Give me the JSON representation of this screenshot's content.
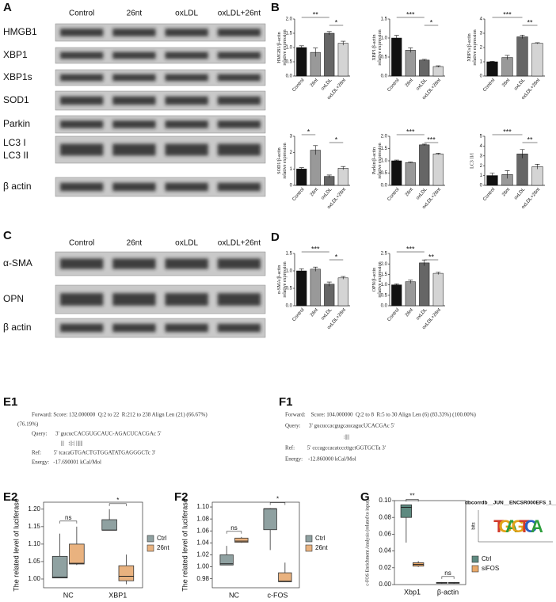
{
  "panel_labels": [
    "A",
    "B",
    "C",
    "D",
    "E1",
    "F1",
    "E2",
    "F2",
    "G"
  ],
  "blot_a": {
    "lanes": [
      "Control",
      "26nt",
      "oxLDL",
      "oxLDL+26nt"
    ],
    "rows": [
      "HMGB1",
      "XBP1",
      "XBP1s",
      "SOD1",
      "Parkin",
      "LC3 I",
      "LC3 II",
      "β actin"
    ]
  },
  "blot_c": {
    "lanes": [
      "Control",
      "26nt",
      "oxLDL",
      "oxLDL+26nt"
    ],
    "rows": [
      "α-SMA",
      "OPN",
      "β actin"
    ]
  },
  "alignment_e1": [
    "Forward: Score: 132.000000  Q:2 to 22  R:212 to 238 Align Len (21) (66.67%)",
    "(76.19%)",
    "Query:      3' gucucCACGUGCAUC-AGACUCACGAc 5'",
    "                     |||   :||:| ||||||",
    "Ref:         5' tcacaGTGACTGTGGATATGAGGGCTc 3'",
    "Energy:   -17.690001 kCal/Mol"
  ],
  "alignment_f1": [
    "Forward:    Score: 104.000000  Q:2 to 8  R:5 to 30 Align Len (6) (83.33%) (100.00%)",
    "Query:      3' gucuccacgugcaucagucUCACGAc 5'",
    "                                          :||||",
    "Ref:         5' cccagccacatcccttgctGGTGCTa 3'",
    "Energy:    -12.860000 kCal/Mol"
  ],
  "chart_data": [
    {
      "type": "bar",
      "ylabel": [
        "HMGB1/β-actin",
        "relative expression"
      ],
      "categories": [
        "Control",
        "26nt",
        "oxLDL",
        "oxLDL+26nt"
      ],
      "colors": [
        "#111111",
        "#999999",
        "#666666",
        "#d4d4d4"
      ],
      "values": [
        1.0,
        0.83,
        1.5,
        1.15
      ],
      "errors": [
        0.06,
        0.15,
        0.06,
        0.07
      ],
      "ylim": [
        0,
        2
      ],
      "yticks": [
        {
          "value": 0,
          "label": "0.0"
        },
        0.5,
        {
          "value": 1,
          "label": "1.0"
        },
        1.5,
        {
          "value": 2,
          "label": "2.0"
        }
      ],
      "significance": [
        {
          "label": "**",
          "between": [
            0,
            2
          ]
        },
        {
          "label": "*",
          "between": [
            2,
            3
          ]
        }
      ]
    },
    {
      "type": "bar",
      "ylabel": [
        "XBP1/β-actin",
        "relative expression"
      ],
      "categories": [
        "Control",
        "26nt",
        "oxLDL",
        "oxLDL+26nt"
      ],
      "colors": [
        "#111111",
        "#999999",
        "#666666",
        "#d4d4d4"
      ],
      "values": [
        1.0,
        0.68,
        0.42,
        0.25
      ],
      "errors": [
        0.07,
        0.06,
        0.02,
        0.02
      ],
      "ylim": [
        0,
        1.5
      ],
      "yticks": [
        {
          "value": 0,
          "label": "0.0"
        },
        0.5,
        {
          "value": 1,
          "label": "1.0"
        },
        1.5
      ],
      "significance": [
        {
          "label": "***",
          "between": [
            0,
            2
          ]
        },
        {
          "label": "*",
          "between": [
            2,
            3
          ]
        }
      ]
    },
    {
      "type": "bar",
      "ylabel": [
        "XBP1s/β-actin",
        "relative expression"
      ],
      "categories": [
        "Control",
        "26nt",
        "oxLDL",
        "oxLDL+26nt"
      ],
      "colors": [
        "#111111",
        "#999999",
        "#666666",
        "#d4d4d4"
      ],
      "values": [
        1.0,
        1.3,
        2.75,
        2.3
      ],
      "errors": [
        0.03,
        0.15,
        0.12,
        0.04
      ],
      "ylim": [
        0,
        4
      ],
      "yticks": [
        0,
        1,
        2,
        3,
        4
      ],
      "significance": [
        {
          "label": "***",
          "between": [
            0,
            2
          ]
        },
        {
          "label": "**",
          "between": [
            2,
            3
          ]
        }
      ]
    },
    {
      "type": "bar",
      "ylabel": [
        "SOD1/β-actin",
        "relative expression"
      ],
      "categories": [
        "Control",
        "26nt",
        "oxLDL",
        "oxLDL+26nt"
      ],
      "colors": [
        "#111111",
        "#999999",
        "#666666",
        "#d4d4d4"
      ],
      "values": [
        1.0,
        2.15,
        0.55,
        1.05
      ],
      "errors": [
        0.08,
        0.28,
        0.08,
        0.1
      ],
      "ylim": [
        0,
        3
      ],
      "yticks": [
        0,
        1,
        2,
        3
      ],
      "significance": [
        {
          "label": "*",
          "between": [
            0,
            1
          ]
        },
        {
          "label": "*",
          "between": [
            2,
            3
          ]
        }
      ]
    },
    {
      "type": "bar",
      "ylabel": [
        "Parkin/β-actin",
        "relative expression"
      ],
      "categories": [
        "Control",
        "26nt",
        "oxLDL",
        "oxLDL+26nt"
      ],
      "colors": [
        "#111111",
        "#999999",
        "#666666",
        "#d4d4d4"
      ],
      "values": [
        1.0,
        0.93,
        1.65,
        1.28
      ],
      "errors": [
        0.03,
        0.02,
        0.03,
        0.03
      ],
      "ylim": [
        0,
        2
      ],
      "yticks": [
        {
          "value": 0,
          "label": "0.0"
        },
        0.5,
        {
          "value": 1,
          "label": "1.0"
        },
        1.5,
        {
          "value": 2,
          "label": "2.0"
        }
      ],
      "significance": [
        {
          "label": "***",
          "between": [
            0,
            2
          ]
        },
        {
          "label": "***",
          "between": [
            2,
            3
          ]
        }
      ]
    },
    {
      "type": "bar",
      "ylabel": [
        "LC3 II/I"
      ],
      "categories": [
        "Control",
        "26nt",
        "oxLDL",
        "oxLDL+26nt"
      ],
      "colors": [
        "#111111",
        "#999999",
        "#666666",
        "#d4d4d4"
      ],
      "values": [
        1.0,
        1.1,
        3.2,
        1.9
      ],
      "errors": [
        0.25,
        0.4,
        0.45,
        0.25
      ],
      "ylim": [
        0,
        5
      ],
      "yticks": [
        0,
        1,
        2,
        3,
        4,
        5
      ],
      "significance": [
        {
          "label": "***",
          "between": [
            0,
            2
          ]
        },
        {
          "label": "**",
          "between": [
            2,
            3
          ]
        }
      ]
    },
    {
      "type": "bar",
      "ylabel": [
        "α-SMA/β-actin",
        "relative expression"
      ],
      "categories": [
        "Control",
        "26nt",
        "oxLDL",
        "oxLDL+26nt"
      ],
      "colors": [
        "#111111",
        "#999999",
        "#666666",
        "#d4d4d4"
      ],
      "values": [
        1.0,
        1.05,
        0.62,
        0.8
      ],
      "errors": [
        0.06,
        0.06,
        0.06,
        0.04
      ],
      "ylim": [
        0,
        1.5
      ],
      "yticks": [
        {
          "value": 0,
          "label": "0.0"
        },
        0.5,
        {
          "value": 1,
          "label": "1.0"
        },
        1.5
      ],
      "significance": [
        {
          "label": "***",
          "between": [
            0,
            2
          ]
        },
        {
          "label": "*",
          "between": [
            2,
            3
          ]
        }
      ]
    },
    {
      "type": "bar",
      "ylabel": [
        "OPN/β-actin",
        "relative expression"
      ],
      "categories": [
        "Control",
        "26nt",
        "oxLDL",
        "oxLDL+26nt"
      ],
      "colors": [
        "#111111",
        "#999999",
        "#666666",
        "#d4d4d4"
      ],
      "values": [
        1.0,
        1.15,
        2.05,
        1.55
      ],
      "errors": [
        0.05,
        0.08,
        0.14,
        0.06
      ],
      "ylim": [
        0,
        2.5
      ],
      "yticks": [
        {
          "value": 0,
          "label": "0.0"
        },
        0.5,
        {
          "value": 1,
          "label": "1.0"
        },
        1.5,
        {
          "value": 2,
          "label": "2.0"
        },
        2.5
      ],
      "significance": [
        {
          "label": "***",
          "between": [
            0,
            2
          ]
        },
        {
          "label": "**",
          "between": [
            2,
            3
          ]
        }
      ]
    },
    {
      "type": "box",
      "ylabel": "The related level of luciferase",
      "categories": [
        "NC",
        "XBP1"
      ],
      "series": [
        {
          "name": "Ctrl",
          "color": "#8fa1a1",
          "values": [
            [
              1.003,
              1.003,
              1.005,
              1.065,
              1.13
            ],
            [
              1.14,
              1.14,
              1.14,
              1.17,
              1.2
            ]
          ]
        },
        {
          "name": "26nt",
          "color": "#e9b27f",
          "values": [
            [
              1.04,
              1.043,
              1.045,
              1.1,
              1.15
            ],
            [
              0.985,
              0.995,
              1.008,
              1.038,
              1.07
            ]
          ]
        }
      ],
      "ylim": [
        0.975,
        1.22
      ],
      "yticks": [
        {
          "value": 1,
          "label": "1.00"
        },
        1.05,
        {
          "value": 1.1,
          "label": "1.10"
        },
        1.15,
        {
          "value": 1.2,
          "label": "1.20"
        }
      ],
      "significance": [
        {
          "label": "ns",
          "category": 0
        },
        {
          "label": "*",
          "category": 1
        }
      ]
    },
    {
      "type": "box",
      "ylabel": "The related level of luciferase",
      "categories": [
        "NC",
        "c-FOS"
      ],
      "series": [
        {
          "name": "Ctrl",
          "color": "#8fa1a1",
          "values": [
            [
              1.003,
              1.003,
              1.005,
              1.02,
              1.035
            ],
            [
              1.028,
              1.062,
              1.097,
              1.097,
              1.098
            ]
          ]
        },
        {
          "name": "26nt",
          "color": "#e9b27f",
          "values": [
            [
              1.04,
              1.041,
              1.043,
              1.048,
              1.05
            ],
            [
              0.975,
              0.975,
              0.976,
              0.99,
              1.007
            ]
          ]
        }
      ],
      "ylim": [
        0.965,
        1.108
      ],
      "yticks": [
        0.98,
        {
          "value": 1,
          "label": "1.00"
        },
        1.02,
        1.04,
        1.06,
        1.08,
        {
          "value": 1.1,
          "label": "1.10"
        }
      ],
      "significance": [
        {
          "label": "ns",
          "category": 0
        },
        {
          "label": "*",
          "category": 1
        }
      ]
    },
    {
      "type": "box",
      "ylabel": "c-FOS Enrichment Analysis (related to input)",
      "categories": [
        "Xbp1",
        "β-actin"
      ],
      "series": [
        {
          "name": "Ctrl",
          "color": "#5e8a80",
          "values": [
            [
              0.05,
              0.08,
              0.092,
              0.095,
              0.095
            ],
            [
              0.001,
              0.0015,
              0.002,
              0.0025,
              0.003
            ]
          ]
        },
        {
          "name": "siFOS",
          "color": "#e9a868",
          "values": [
            [
              0.021,
              0.022,
              0.024,
              0.026,
              0.028
            ],
            [
              0.001,
              0.0015,
              0.002,
              0.0025,
              0.003
            ]
          ]
        }
      ],
      "ylim": [
        0,
        0.1
      ],
      "yticks": [
        {
          "value": 0,
          "label": "0.00"
        },
        0.02,
        0.04,
        0.06,
        0.08,
        {
          "value": 0.1,
          "label": "0.10"
        }
      ],
      "significance": [
        {
          "label": "**",
          "category": 0
        },
        {
          "label": "ns",
          "category": 1
        }
      ],
      "inset": {
        "title": "dbcorrdb__JUN__ENCSR000EFS_1__m1",
        "ylabel": "bits",
        "motif": [
          "T",
          "G",
          "A",
          "G",
          "T",
          "C",
          "A"
        ]
      }
    }
  ]
}
